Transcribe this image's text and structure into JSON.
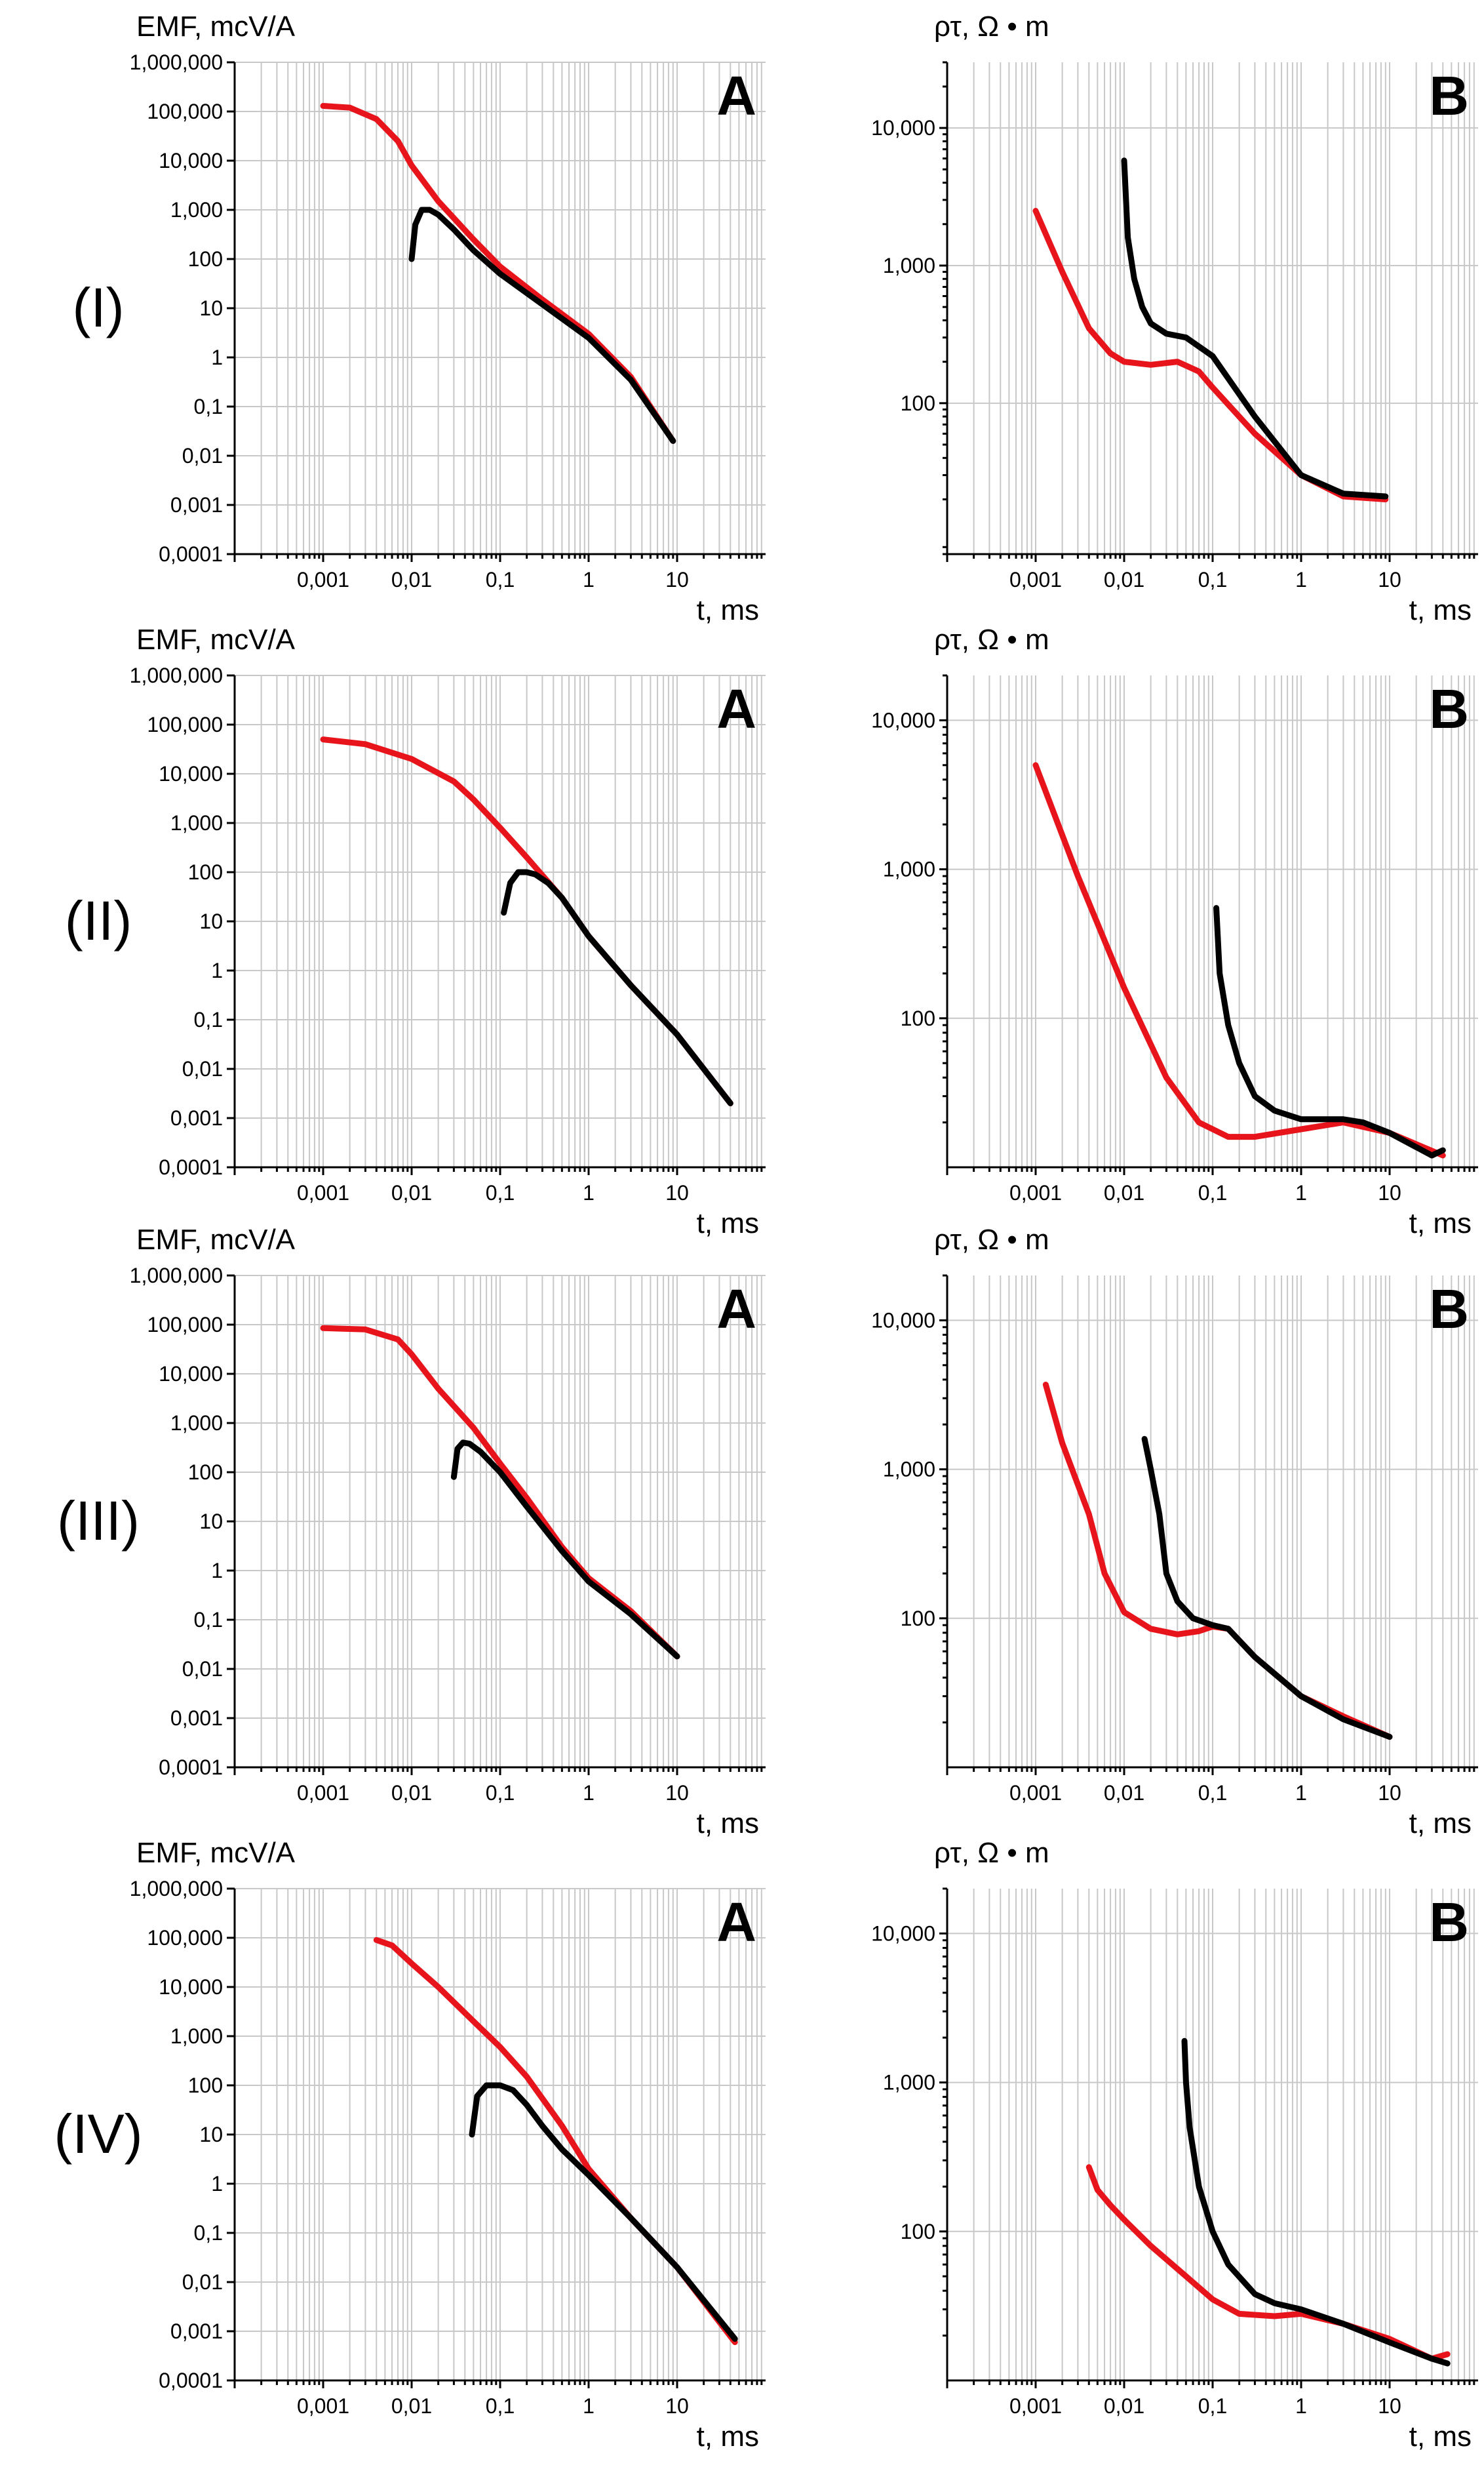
{
  "colors": {
    "red": "#e8141b",
    "black": "#000000",
    "grid": "#c8c8c8"
  },
  "chart_data": [
    {
      "type": "line",
      "row_label": "(I)",
      "panel_letter": "A",
      "log_x": true,
      "log_y": true,
      "ylabel": "EMF, mcV/A",
      "xlabel": "t, ms",
      "xlim": [
        0.0001,
        100
      ],
      "ylim": [
        0.0001,
        1000000
      ],
      "x_ticks": [
        "0,001",
        "0,01",
        "0,1",
        "1",
        "10"
      ],
      "y_ticks": [
        "0,0001",
        "0,001",
        "0,01",
        "0,1",
        "1",
        "10",
        "100",
        "1,000",
        "10,000",
        "100,000",
        "1,000,000"
      ],
      "series": [
        {
          "color": "red",
          "x": [
            0.001,
            0.002,
            0.004,
            0.007,
            0.01,
            0.02,
            0.05,
            0.1,
            0.3,
            1,
            3,
            9
          ],
          "y": [
            130000,
            120000,
            70000,
            25000,
            8000,
            1500,
            250,
            70,
            15,
            3,
            0.4,
            0.02
          ]
        },
        {
          "color": "black",
          "x": [
            0.01,
            0.011,
            0.013,
            0.016,
            0.02,
            0.03,
            0.05,
            0.1,
            0.3,
            1,
            3,
            9
          ],
          "y": [
            100,
            500,
            1000,
            1000,
            800,
            400,
            150,
            50,
            12,
            2.5,
            0.35,
            0.02
          ]
        }
      ]
    },
    {
      "type": "line",
      "row_label": "(I)",
      "panel_letter": "B",
      "log_x": true,
      "log_y": true,
      "ylabel": "ρτ, Ω • m",
      "xlabel": "t, ms",
      "xlim": [
        0.0001,
        100
      ],
      "ylim": [
        8,
        30000
      ],
      "x_ticks": [
        "0,001",
        "0,01",
        "0,1",
        "1",
        "10"
      ],
      "y_ticks": [
        "100",
        "1,000",
        "10,000"
      ],
      "series": [
        {
          "color": "red",
          "x": [
            0.001,
            0.002,
            0.004,
            0.007,
            0.01,
            0.02,
            0.04,
            0.07,
            0.1,
            0.3,
            1,
            3,
            9
          ],
          "y": [
            2500,
            900,
            350,
            230,
            200,
            190,
            200,
            170,
            130,
            60,
            30,
            21,
            20
          ]
        },
        {
          "color": "black",
          "x": [
            0.01,
            0.011,
            0.013,
            0.016,
            0.02,
            0.03,
            0.05,
            0.1,
            0.3,
            1,
            3,
            9
          ],
          "y": [
            5800,
            1600,
            800,
            500,
            380,
            320,
            300,
            220,
            80,
            30,
            22,
            21
          ]
        }
      ]
    },
    {
      "type": "line",
      "row_label": "(II)",
      "panel_letter": "A",
      "log_x": true,
      "log_y": true,
      "ylabel": "EMF, mcV/A",
      "xlabel": "t, ms",
      "xlim": [
        0.0001,
        100
      ],
      "ylim": [
        0.0001,
        1000000
      ],
      "x_ticks": [
        "0,001",
        "0,01",
        "0,1",
        "1",
        "10"
      ],
      "y_ticks": [
        "0,0001",
        "0,001",
        "0,01",
        "0,1",
        "1",
        "10",
        "100",
        "1,000",
        "10,000",
        "100,000",
        "1,000,000"
      ],
      "series": [
        {
          "color": "red",
          "x": [
            0.001,
            0.003,
            0.01,
            0.03,
            0.05,
            0.1,
            0.2,
            0.5,
            1,
            3,
            10,
            40
          ],
          "y": [
            50000,
            40000,
            20000,
            7000,
            3000,
            800,
            200,
            30,
            5,
            0.5,
            0.05,
            0.002
          ]
        },
        {
          "color": "black",
          "x": [
            0.11,
            0.13,
            0.16,
            0.2,
            0.25,
            0.35,
            0.5,
            1,
            3,
            10,
            40
          ],
          "y": [
            15,
            60,
            100,
            100,
            90,
            60,
            30,
            5,
            0.5,
            0.05,
            0.002
          ]
        }
      ]
    },
    {
      "type": "line",
      "row_label": "(II)",
      "panel_letter": "B",
      "log_x": true,
      "log_y": true,
      "ylabel": "ρτ, Ω • m",
      "xlabel": "t, ms",
      "xlim": [
        0.0001,
        100
      ],
      "ylim": [
        10,
        20000
      ],
      "x_ticks": [
        "0,001",
        "0,01",
        "0,1",
        "1",
        "10"
      ],
      "y_ticks": [
        "100",
        "1,000",
        "10,000"
      ],
      "series": [
        {
          "color": "red",
          "x": [
            0.001,
            0.003,
            0.01,
            0.03,
            0.07,
            0.15,
            0.3,
            1,
            3,
            10,
            40
          ],
          "y": [
            5000,
            900,
            160,
            40,
            20,
            16,
            16,
            18,
            20,
            17,
            12
          ]
        },
        {
          "color": "black",
          "x": [
            0.11,
            0.12,
            0.15,
            0.2,
            0.3,
            0.5,
            1,
            2,
            3,
            5,
            10,
            30,
            40
          ],
          "y": [
            550,
            200,
            90,
            50,
            30,
            24,
            21,
            21,
            21,
            20,
            17,
            12,
            13
          ]
        }
      ]
    },
    {
      "type": "line",
      "row_label": "(III)",
      "panel_letter": "A",
      "log_x": true,
      "log_y": true,
      "ylabel": "EMF, mcV/A",
      "xlabel": "t, ms",
      "xlim": [
        0.0001,
        100
      ],
      "ylim": [
        0.0001,
        1000000
      ],
      "x_ticks": [
        "0,001",
        "0,01",
        "0,1",
        "1",
        "10"
      ],
      "y_ticks": [
        "0,0001",
        "0,001",
        "0,01",
        "0,1",
        "1",
        "10",
        "100",
        "1,000",
        "10,000",
        "100,000",
        "1,000,000"
      ],
      "series": [
        {
          "color": "red",
          "x": [
            0.001,
            0.003,
            0.007,
            0.01,
            0.02,
            0.05,
            0.1,
            0.2,
            0.5,
            1,
            3,
            10
          ],
          "y": [
            85000,
            80000,
            50000,
            25000,
            5000,
            800,
            150,
            30,
            3,
            0.7,
            0.15,
            0.018
          ]
        },
        {
          "color": "black",
          "x": [
            0.03,
            0.033,
            0.038,
            0.045,
            0.06,
            0.1,
            0.2,
            0.5,
            1,
            3,
            10
          ],
          "y": [
            80,
            300,
            400,
            380,
            260,
            100,
            20,
            2.5,
            0.6,
            0.13,
            0.018
          ]
        }
      ]
    },
    {
      "type": "line",
      "row_label": "(III)",
      "panel_letter": "B",
      "log_x": true,
      "log_y": true,
      "ylabel": "ρτ, Ω • m",
      "xlabel": "t, ms",
      "xlim": [
        0.0001,
        100
      ],
      "ylim": [
        10,
        20000
      ],
      "x_ticks": [
        "0,001",
        "0,01",
        "0,1",
        "1",
        "10"
      ],
      "y_ticks": [
        "100",
        "1,000",
        "10,000"
      ],
      "series": [
        {
          "color": "red",
          "x": [
            0.0013,
            0.002,
            0.004,
            0.006,
            0.01,
            0.02,
            0.04,
            0.07,
            0.1,
            0.15,
            0.3,
            1,
            3,
            10
          ],
          "y": [
            3700,
            1500,
            500,
            200,
            110,
            85,
            78,
            82,
            88,
            85,
            55,
            30,
            22,
            16
          ]
        },
        {
          "color": "black",
          "x": [
            0.017,
            0.02,
            0.025,
            0.03,
            0.04,
            0.06,
            0.1,
            0.15,
            0.3,
            1,
            3,
            10
          ],
          "y": [
            1600,
            1000,
            500,
            200,
            130,
            100,
            90,
            85,
            55,
            30,
            21,
            16
          ]
        }
      ]
    },
    {
      "type": "line",
      "row_label": "(IV)",
      "panel_letter": "A",
      "log_x": true,
      "log_y": true,
      "ylabel": "EMF, mcV/A",
      "xlabel": "t, ms",
      "xlim": [
        0.0001,
        100
      ],
      "ylim": [
        0.0001,
        1000000
      ],
      "x_ticks": [
        "0,001",
        "0,01",
        "0,1",
        "1",
        "10"
      ],
      "y_ticks": [
        "0,0001",
        "0,001",
        "0,01",
        "0,1",
        "1",
        "10",
        "100",
        "1,000",
        "10,000",
        "100,000",
        "1,000,000"
      ],
      "series": [
        {
          "color": "red",
          "x": [
            0.004,
            0.006,
            0.01,
            0.02,
            0.05,
            0.1,
            0.2,
            0.5,
            1,
            3,
            10,
            45
          ],
          "y": [
            90000,
            70000,
            30000,
            10000,
            2000,
            600,
            150,
            15,
            2,
            0.2,
            0.02,
            0.0006
          ]
        },
        {
          "color": "black",
          "x": [
            0.048,
            0.055,
            0.07,
            0.1,
            0.14,
            0.2,
            0.3,
            0.5,
            1,
            3,
            10,
            45
          ],
          "y": [
            10,
            60,
            100,
            100,
            80,
            40,
            15,
            5,
            1.5,
            0.2,
            0.02,
            0.0007
          ]
        }
      ]
    },
    {
      "type": "line",
      "row_label": "(IV)",
      "panel_letter": "B",
      "log_x": true,
      "log_y": true,
      "ylabel": "ρτ, Ω • m",
      "xlabel": "t, ms",
      "xlim": [
        0.0001,
        100
      ],
      "ylim": [
        10,
        20000
      ],
      "x_ticks": [
        "0,001",
        "0,01",
        "0,1",
        "1",
        "10"
      ],
      "y_ticks": [
        "100",
        "1,000",
        "10,000"
      ],
      "series": [
        {
          "color": "red",
          "x": [
            0.004,
            0.005,
            0.007,
            0.01,
            0.02,
            0.05,
            0.1,
            0.2,
            0.5,
            1,
            3,
            10,
            30,
            45
          ],
          "y": [
            270,
            190,
            150,
            120,
            80,
            50,
            35,
            28,
            27,
            28,
            24,
            19,
            14,
            15
          ]
        },
        {
          "color": "black",
          "x": [
            0.048,
            0.05,
            0.055,
            0.07,
            0.1,
            0.15,
            0.3,
            0.5,
            1,
            3,
            10,
            30,
            45
          ],
          "y": [
            1900,
            1000,
            500,
            200,
            100,
            60,
            38,
            33,
            30,
            24,
            18,
            14,
            13
          ]
        }
      ]
    }
  ]
}
